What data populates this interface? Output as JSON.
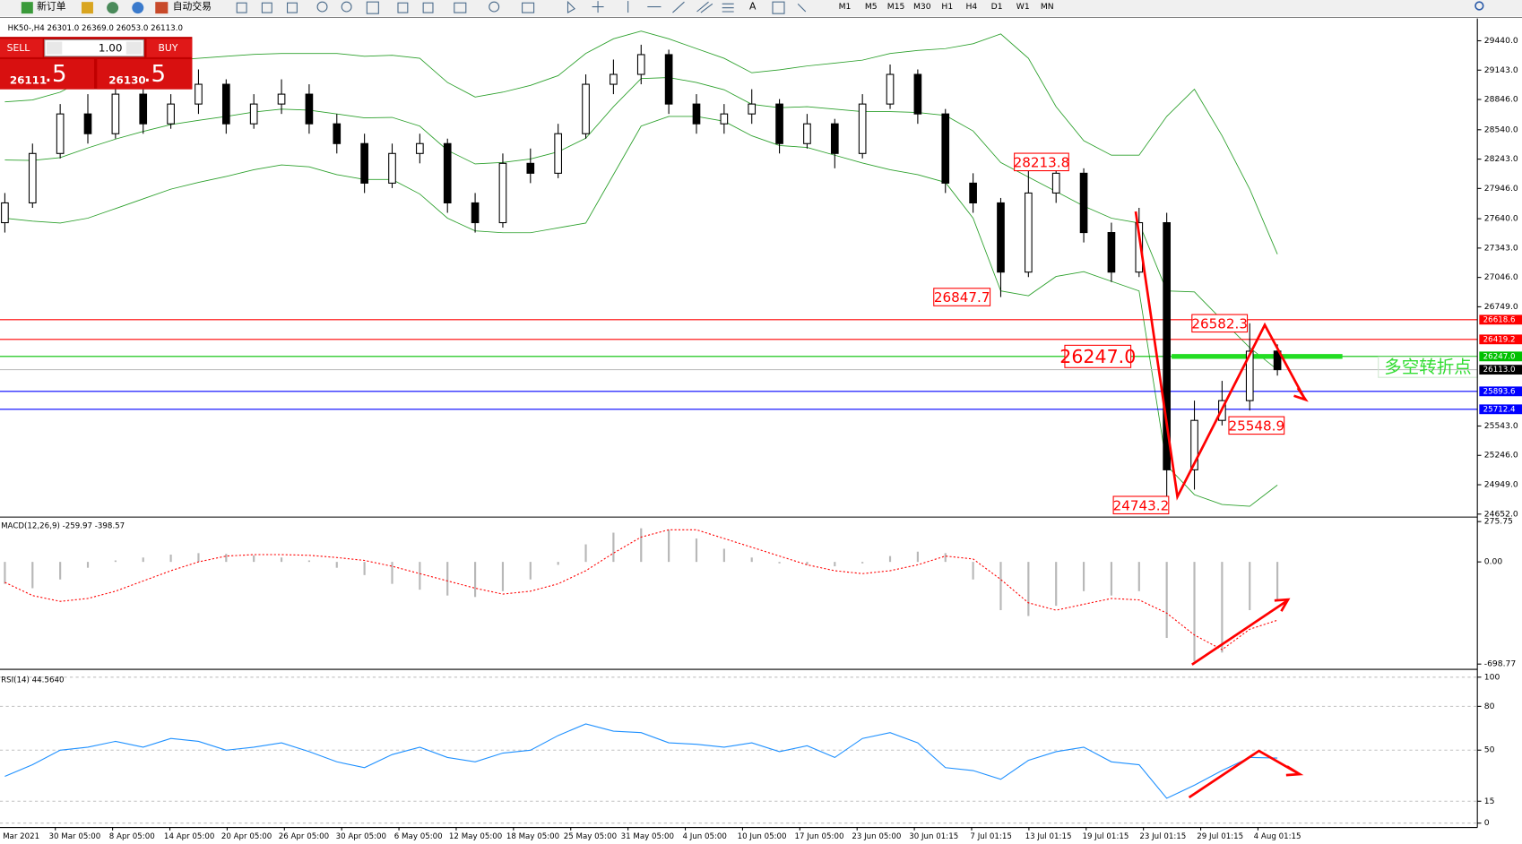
{
  "toolbar": {
    "new_order": "新订单",
    "auto_trading": "自动交易",
    "timeframes": [
      "M1",
      "M5",
      "M15",
      "M30",
      "H1",
      "H4",
      "D1",
      "W1",
      "MN"
    ]
  },
  "trade_panel": {
    "sell": "SELL",
    "buy": "BUY",
    "lots": "1.00",
    "sell_price": "26111",
    "sell_pip": ".5",
    "buy_price": "26130",
    "buy_pip": ".5"
  },
  "chart_data": [
    {
      "type": "candlestick",
      "title": "HK50-,H4  26301.0 26369.0 26053.0 26113.0",
      "open": [
        27600,
        27800,
        28300,
        28700,
        28500,
        28900,
        28600,
        28800,
        29000,
        28600,
        28800,
        28900,
        28600,
        28400,
        28000,
        28300,
        28400,
        27800,
        27600,
        28200,
        28100,
        28500,
        29000,
        29100,
        29300,
        28800,
        28600,
        28700,
        28800,
        28400,
        28600,
        28300,
        28800,
        29100,
        28700,
        28000,
        27800,
        27100,
        27900,
        28100,
        27500,
        27100,
        27600,
        25100,
        25600,
        25800,
        26301
      ],
      "high": [
        27900,
        28400,
        28800,
        28900,
        29000,
        28950,
        28900,
        29150,
        29050,
        28900,
        29050,
        29000,
        28700,
        28500,
        28400,
        28500,
        28450,
        27900,
        28300,
        28350,
        28600,
        29100,
        29250,
        29400,
        29350,
        28900,
        28800,
        28950,
        28850,
        28700,
        28650,
        28900,
        29200,
        29150,
        28750,
        28100,
        27850,
        28213.8,
        28200,
        28150,
        27600,
        27750,
        27700,
        25800,
        26000,
        26582.3,
        26369
      ],
      "low": [
        27500,
        27750,
        28250,
        28400,
        28450,
        28500,
        28550,
        28700,
        28500,
        28550,
        28700,
        28500,
        28300,
        27900,
        27950,
        28200,
        27700,
        27500,
        27550,
        28000,
        28050,
        28450,
        28900,
        29000,
        28700,
        28500,
        28500,
        28600,
        28300,
        28350,
        28150,
        28250,
        28750,
        28600,
        27900,
        27700,
        26847.7,
        27050,
        27800,
        27400,
        27000,
        27050,
        24743.2,
        24900,
        25548.9,
        25700,
        26053
      ],
      "close": [
        27800,
        28300,
        28700,
        28500,
        28900,
        28600,
        28800,
        29000,
        28600,
        28800,
        28900,
        28600,
        28400,
        28000,
        28300,
        28400,
        27800,
        27600,
        28200,
        28100,
        28500,
        29000,
        29100,
        29300,
        28800,
        28600,
        28700,
        28800,
        28400,
        28600,
        28300,
        28800,
        29100,
        28700,
        28000,
        27800,
        27100,
        27900,
        28100,
        27500,
        27100,
        27600,
        25100,
        25600,
        25800,
        26300,
        26113
      ],
      "up_color": "#ffffff",
      "down_color": "#000000",
      "bands": {
        "color": "#2ca02c",
        "upper": [
          28822,
          28842,
          28920,
          29067,
          29146,
          29205,
          29244,
          29263,
          29283,
          29303,
          29312,
          29312,
          29312,
          29283,
          29293,
          29263,
          29018,
          28871,
          28920,
          28989,
          29087,
          29312,
          29460,
          29538,
          29460,
          29361,
          29263,
          29116,
          29146,
          29185,
          29214,
          29244,
          29312,
          29342,
          29361,
          29410,
          29509,
          29263,
          28773,
          28430,
          28282,
          28282,
          28675,
          28950,
          28479,
          27939,
          27281
        ],
        "middle": [
          28234,
          28229,
          28258,
          28356,
          28445,
          28523,
          28592,
          28636,
          28675,
          28719,
          28748,
          28739,
          28699,
          28660,
          28665,
          28577,
          28332,
          28194,
          28209,
          28244,
          28317,
          28454,
          28773,
          29058,
          29068,
          29018,
          28945,
          28798,
          28763,
          28773,
          28748,
          28724,
          28724,
          28714,
          28685,
          28528,
          28209,
          28062,
          27915,
          27768,
          27645,
          27596,
          26909,
          26900,
          26615,
          26335,
          26114
        ],
        "lower": [
          27645,
          27616,
          27596,
          27645,
          27743,
          27841,
          27939,
          28008,
          28067,
          28135,
          28184,
          28165,
          28086,
          28037,
          28037,
          27890,
          27645,
          27517,
          27498,
          27498,
          27547,
          27596,
          28086,
          28577,
          28675,
          28675,
          28626,
          28479,
          28380,
          28361,
          28282,
          28204,
          28135,
          28086,
          28008,
          27645,
          26909,
          26860,
          27056,
          27105,
          27007,
          26909,
          25143,
          24849,
          24750,
          24731,
          24946
        ]
      },
      "ylim": [
        24622,
        29666
      ],
      "yticks": [
        {
          "value": 29440,
          "label": "29440.0"
        },
        {
          "value": 29143,
          "label": "29143.0"
        },
        {
          "value": 28846,
          "label": "28846.0"
        },
        {
          "value": 28540,
          "label": "28540.0"
        },
        {
          "value": 28243,
          "label": "28243.0"
        },
        {
          "value": 27946,
          "label": "27946.0"
        },
        {
          "value": 27640,
          "label": "27640.0"
        },
        {
          "value": 27343,
          "label": "27343.0"
        },
        {
          "value": 27046,
          "label": "27046.0"
        },
        {
          "value": 26749,
          "label": "26749.0"
        },
        {
          "value": 25543,
          "label": "25543.0"
        },
        {
          "value": 25246,
          "label": "25246.0"
        },
        {
          "value": 24949,
          "label": "24949.0"
        },
        {
          "value": 24652,
          "label": "24652.0"
        }
      ],
      "hlines": [
        {
          "value": 26618.6,
          "label": "26618.6",
          "color": "#ff0000",
          "box_color": "#ff0000"
        },
        {
          "value": 26419.2,
          "label": "26419.2",
          "color": "#ff0000",
          "box_color": "#ff0000"
        },
        {
          "value": 26247.0,
          "label": "26247.0",
          "color": "#00c000",
          "box_color": "#00c000",
          "thick": true
        },
        {
          "value": 26113.0,
          "label": "26113.0",
          "color": "#c0c0c0",
          "box_color": "#000000"
        },
        {
          "value": 25893.6,
          "label": "25893.6",
          "color": "#0000ff",
          "box_color": "#0000ff"
        },
        {
          "value": 25712.4,
          "label": "25712.4",
          "color": "#0000ff",
          "box_color": "#0000ff"
        }
      ],
      "annotations": [
        {
          "value": 28213.8,
          "label": "28213.8"
        },
        {
          "value": 26847.7,
          "label": "26847.7"
        },
        {
          "value": 26582.3,
          "label": "26582.3"
        },
        {
          "value": 26247.0,
          "label": "26247.0"
        },
        {
          "value": 25548.9,
          "label": "25548.9"
        },
        {
          "value": 24743.2,
          "label": "24743.2"
        }
      ],
      "note": "多空转折点"
    },
    {
      "type": "macd",
      "title": "MACD(12,26,9) -259.97 -398.57",
      "histogram": {
        "color": "#b8b8b8",
        "values": [
          -150,
          -180,
          -120,
          -40,
          10,
          30,
          50,
          60,
          55,
          45,
          30,
          10,
          -40,
          -90,
          -150,
          -190,
          -230,
          -240,
          -200,
          -120,
          -20,
          120,
          200,
          230,
          220,
          160,
          90,
          30,
          -10,
          -20,
          -30,
          -10,
          40,
          70,
          60,
          -120,
          -330,
          -370,
          -300,
          -200,
          -230,
          -200,
          -520,
          -680,
          -620,
          -330,
          -259.97
        ]
      },
      "signal": {
        "color": "#ff0000",
        "values": [
          -140,
          -230,
          -270,
          -250,
          -200,
          -130,
          -60,
          0,
          40,
          50,
          50,
          45,
          30,
          10,
          -30,
          -80,
          -130,
          -180,
          -220,
          -200,
          -150,
          -60,
          60,
          170,
          220,
          220,
          160,
          100,
          40,
          -20,
          -60,
          -80,
          -60,
          -20,
          40,
          20,
          -120,
          -280,
          -330,
          -290,
          -250,
          -260,
          -350,
          -500,
          -600,
          -460,
          -398.57
        ]
      },
      "ylim": [
        -735,
        300
      ],
      "yticks": [
        {
          "value": 275.75,
          "label": "275.75"
        },
        {
          "value": 0,
          "label": "0.00"
        },
        {
          "value": -698.77,
          "label": "-698.77"
        }
      ]
    },
    {
      "type": "line",
      "title": "RSI(14) 44.5640",
      "color": "#1e90ff",
      "values": [
        32,
        40,
        50,
        52,
        56,
        52,
        58,
        56,
        50,
        52,
        55,
        49,
        42,
        38,
        47,
        52,
        45,
        42,
        48,
        50,
        60,
        68,
        63,
        62,
        55,
        54,
        52,
        55,
        49,
        53,
        45,
        58,
        62,
        55,
        38,
        36,
        30,
        43,
        49,
        52,
        42,
        40,
        17,
        26,
        36,
        45,
        44.564
      ],
      "ylim": [
        -3,
        104
      ],
      "yticks": [
        100,
        80,
        50,
        15,
        0
      ],
      "x_labels": [
        "3 Mar 2021",
        "30 Mar 05:00",
        "8 Apr 05:00",
        "14 Apr 05:00",
        "20 Apr 05:00",
        "26 Apr 05:00",
        "30 Apr 05:00",
        "6 May 05:00",
        "12 May 05:00",
        "18 May 05:00",
        "25 May 05:00",
        "31 May 05:00",
        "4 Jun 05:00",
        "10 Jun 05:00",
        "17 Jun 05:00",
        "23 Jun 05:00",
        "30 Jun 01:15",
        "7 Jul 01:15",
        "13 Jul 01:15",
        "19 Jul 01:15",
        "23 Jul 01:15",
        "29 Jul 01:15",
        "4 Aug 01:15"
      ]
    }
  ]
}
